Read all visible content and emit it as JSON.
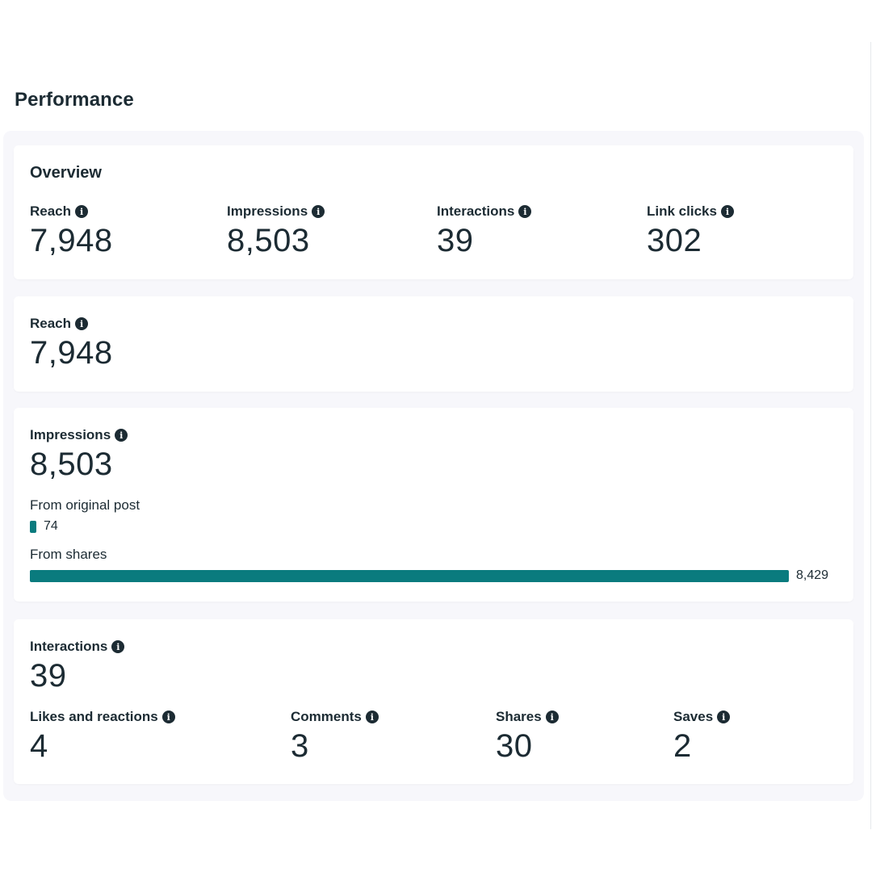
{
  "page": {
    "title": "Performance"
  },
  "overview": {
    "title": "Overview",
    "metrics": [
      {
        "label": "Reach",
        "value": "7,948"
      },
      {
        "label": "Impressions",
        "value": "8,503"
      },
      {
        "label": "Interactions",
        "value": "39"
      },
      {
        "label": "Link clicks",
        "value": "302"
      }
    ]
  },
  "reach": {
    "label": "Reach",
    "value": "7,948"
  },
  "impressions": {
    "label": "Impressions",
    "value": "8,503",
    "breakdown": [
      {
        "label": "From original post",
        "value": 74,
        "display": "74"
      },
      {
        "label": "From shares",
        "value": 8429,
        "display": "8,429"
      }
    ]
  },
  "interactions": {
    "label": "Interactions",
    "value": "39",
    "breakdown": [
      {
        "label": "Likes and reactions",
        "value": "4"
      },
      {
        "label": "Comments",
        "value": "3"
      },
      {
        "label": "Shares",
        "value": "30"
      },
      {
        "label": "Saves",
        "value": "2"
      }
    ]
  },
  "icons": {
    "info": "info-icon"
  },
  "colors": {
    "bar": "#0a7b7e",
    "text": "#1c2b33"
  }
}
